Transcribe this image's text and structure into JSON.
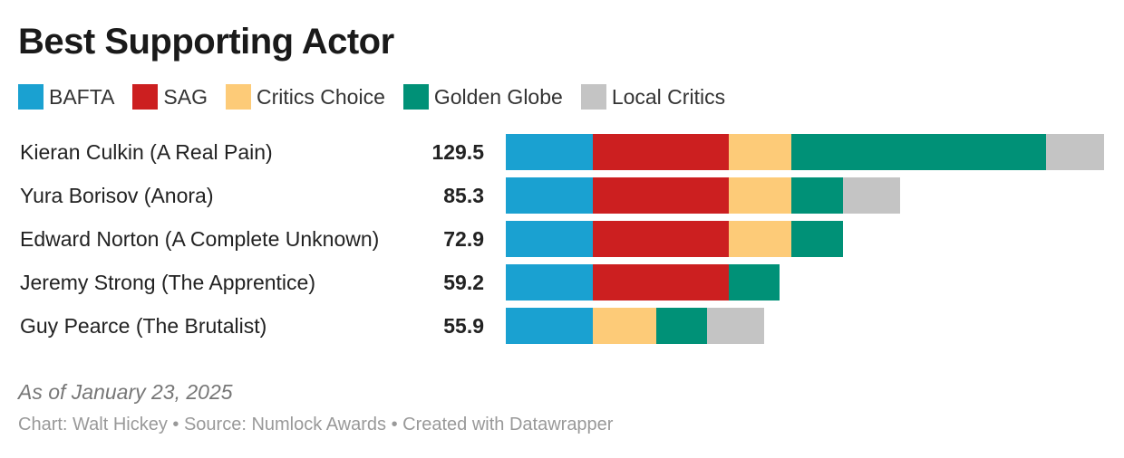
{
  "chart_data": {
    "type": "bar",
    "orientation": "horizontal",
    "stacked": true,
    "title": "Best Supporting Actor",
    "legend_placement": "top",
    "categories": [
      "Kieran Culkin (A Real Pain)",
      "Yura Borisov (Anora)",
      "Edward Norton (A Complete Unknown)",
      "Jeremy Strong (The Apprentice)",
      "Guy Pearce (The Brutalist)"
    ],
    "totals": [
      "129.5",
      "85.3",
      "72.9",
      "59.2",
      "55.9"
    ],
    "series": [
      {
        "name": "BAFTA",
        "color": "#1aa1d1",
        "values": [
          18.8,
          18.8,
          18.8,
          18.8,
          18.8
        ]
      },
      {
        "name": "SAG",
        "color": "#cc1f20",
        "values": [
          29.4,
          29.4,
          29.4,
          29.4,
          0
        ]
      },
      {
        "name": "Critics Choice",
        "color": "#fdcb78",
        "values": [
          13.7,
          13.7,
          13.7,
          0,
          13.7
        ]
      },
      {
        "name": "Golden Globe",
        "color": "#009177",
        "values": [
          55.0,
          11.0,
          11.0,
          11.0,
          11.0
        ]
      },
      {
        "name": "Local Critics",
        "color": "#c4c4c4",
        "values": [
          12.6,
          12.4,
          0,
          0,
          12.4
        ]
      }
    ],
    "xlim": [
      0,
      129.5
    ],
    "grid": false,
    "note": "As of January 23, 2025",
    "credits": "Chart: Walt Hickey • Source: Numlock Awards • Created with Datawrapper"
  }
}
